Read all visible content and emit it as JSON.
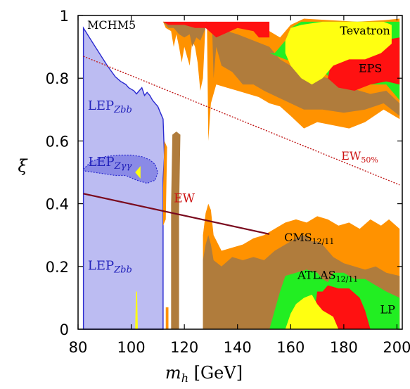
{
  "chart_data": {
    "type": "area",
    "xlabel": "m_h [GeV]",
    "xlabel_main": "m",
    "xlabel_sub": "h",
    "xlabel_unit": " [GeV]",
    "ylabel": "ξ",
    "xlim": [
      80,
      202
    ],
    "ylim": [
      0,
      1
    ],
    "x_ticks": [
      80,
      100,
      120,
      140,
      160,
      180,
      200
    ],
    "y_ticks": [
      0,
      0.2,
      0.4,
      0.6,
      0.8,
      1
    ],
    "y_tick_labels": [
      "0",
      "0.2",
      "0.4",
      "0.6",
      "0.8",
      "1"
    ],
    "grid": false,
    "model_label": "MCHM5",
    "colors": {
      "lep": "#bcbcf2",
      "lep_line": "#2a2ad0",
      "lep_zgg": "#8a8ae6",
      "cms": "#ff9200",
      "atlas": "#b07c3c",
      "lp": "#22ee22",
      "eps": "#ff1111",
      "tevatron": "#ffff11",
      "ew": "#7a0a1e",
      "ew50": "#c01818"
    },
    "regions": [
      {
        "name": "LEP_Zbb",
        "label": "LEP",
        "sub": "Zbb",
        "at": [
          92,
          0.7
        ],
        "polygon": [
          [
            82,
            0.96
          ],
          [
            85,
            0.92
          ],
          [
            88,
            0.88
          ],
          [
            91,
            0.84
          ],
          [
            94,
            0.805
          ],
          [
            96,
            0.79
          ],
          [
            98,
            0.78
          ],
          [
            99,
            0.77
          ],
          [
            100,
            0.765
          ],
          [
            101,
            0.76
          ],
          [
            102,
            0.75
          ],
          [
            103,
            0.76
          ],
          [
            104,
            0.77
          ],
          [
            105,
            0.745
          ],
          [
            106,
            0.755
          ],
          [
            107,
            0.745
          ],
          [
            108,
            0.73
          ],
          [
            109,
            0.72
          ],
          [
            110,
            0.71
          ],
          [
            111,
            0.69
          ],
          [
            112,
            0.67
          ],
          [
            112.5,
            0.55
          ],
          [
            112,
            0.48
          ],
          [
            112,
            0
          ],
          [
            82,
            0
          ]
        ]
      },
      {
        "name": "LEP_Zbb_lower",
        "label": "LEP",
        "sub": "Zbb",
        "at": [
          92,
          0.19
        ]
      },
      {
        "name": "LEP_Zgg",
        "label": "LEP",
        "sub": "Zγγ",
        "at": [
          92,
          0.52
        ],
        "polygon": [
          [
            82,
            0.51
          ],
          [
            85,
            0.535
          ],
          [
            90,
            0.55
          ],
          [
            95,
            0.555
          ],
          [
            100,
            0.555
          ],
          [
            104,
            0.55
          ],
          [
            107,
            0.54
          ],
          [
            109,
            0.525
          ],
          [
            110,
            0.5
          ],
          [
            109,
            0.475
          ],
          [
            106,
            0.465
          ],
          [
            102,
            0.475
          ],
          [
            98,
            0.49
          ],
          [
            94,
            0.49
          ],
          [
            90,
            0.495
          ],
          [
            86,
            0.5
          ],
          [
            82,
            0.505
          ]
        ]
      },
      {
        "name": "EW",
        "label": "EW",
        "at": [
          120,
          0.405
        ],
        "line": [
          [
            82,
            0.432
          ],
          [
            152,
            0.303
          ]
        ]
      },
      {
        "name": "EW_50",
        "label": "EW",
        "sub": "50%",
        "at": [
          186,
          0.54
        ],
        "line": [
          [
            82,
            0.87
          ],
          [
            201,
            0.46
          ]
        ]
      },
      {
        "name": "CMS",
        "label": "CMS",
        "sub": "12/11",
        "at": [
          167,
          0.28
        ],
        "polygon": [
          [
            112,
            0.98
          ],
          [
            124,
            0.97
          ],
          [
            136,
            0.97
          ],
          [
            148,
            0.97
          ],
          [
            152,
            0.95
          ],
          [
            156,
            0.93
          ],
          [
            160,
            0.97
          ],
          [
            165,
            0.99
          ],
          [
            175,
            0.985
          ],
          [
            185,
            0.98
          ],
          [
            195,
            0.985
          ],
          [
            201,
            0.99
          ],
          [
            201,
            0.67
          ],
          [
            195,
            0.7
          ],
          [
            188,
            0.66
          ],
          [
            182,
            0.64
          ],
          [
            176,
            0.65
          ],
          [
            170,
            0.66
          ],
          [
            165,
            0.64
          ],
          [
            160,
            0.68
          ],
          [
            156,
            0.71
          ],
          [
            152,
            0.72
          ],
          [
            148,
            0.74
          ],
          [
            144,
            0.75
          ],
          [
            140,
            0.76
          ],
          [
            136,
            0.77
          ],
          [
            132,
            0.78
          ],
          [
            130,
            0.72
          ],
          [
            129,
            0.6
          ],
          [
            128.5,
            0.98
          ],
          [
            128,
            0.98
          ],
          [
            127,
            0.8
          ],
          [
            126,
            0.76
          ],
          [
            125,
            0.85
          ],
          [
            124,
            0.9
          ],
          [
            123,
            0.92
          ],
          [
            122,
            0.84
          ],
          [
            121,
            0.87
          ],
          [
            120,
            0.9
          ],
          [
            119,
            0.85
          ],
          [
            118,
            0.9
          ],
          [
            117,
            0.94
          ],
          [
            116,
            0.9
          ],
          [
            115,
            0.95
          ],
          [
            113,
            0.96
          ],
          [
            112,
            0.98
          ]
        ]
      },
      {
        "name": "CMS_low",
        "polygon": [
          [
            127,
            0
          ],
          [
            201,
            0
          ],
          [
            201,
            0.32
          ],
          [
            197,
            0.35
          ],
          [
            194,
            0.33
          ],
          [
            190,
            0.35
          ],
          [
            186,
            0.32
          ],
          [
            182,
            0.34
          ],
          [
            178,
            0.33
          ],
          [
            174,
            0.35
          ],
          [
            170,
            0.36
          ],
          [
            166,
            0.34
          ],
          [
            162,
            0.35
          ],
          [
            158,
            0.34
          ],
          [
            154,
            0.32
          ],
          [
            150,
            0.3
          ],
          [
            146,
            0.29
          ],
          [
            142,
            0.27
          ],
          [
            138,
            0.26
          ],
          [
            134,
            0.25
          ],
          [
            131,
            0.3
          ],
          [
            130,
            0.38
          ],
          [
            129,
            0.4
          ],
          [
            128,
            0.37
          ],
          [
            127,
            0.3
          ]
        ]
      },
      {
        "name": "ATLAS",
        "label": "ATLAS",
        "sub": "12/11",
        "at": [
          174,
          0.16
        ],
        "polygon": [
          [
            127,
            0
          ],
          [
            201,
            0
          ],
          [
            201,
            0.17
          ],
          [
            196,
            0.18
          ],
          [
            192,
            0.2
          ],
          [
            188,
            0.19
          ],
          [
            184,
            0.2
          ],
          [
            180,
            0.21
          ],
          [
            176,
            0.23
          ],
          [
            172,
            0.27
          ],
          [
            170,
            0.28
          ],
          [
            168,
            0.28
          ],
          [
            165,
            0.3
          ],
          [
            162,
            0.29
          ],
          [
            158,
            0.27
          ],
          [
            154,
            0.25
          ],
          [
            150,
            0.22
          ],
          [
            146,
            0.23
          ],
          [
            142,
            0.22
          ],
          [
            138,
            0.23
          ],
          [
            134,
            0.2
          ],
          [
            131,
            0.22
          ],
          [
            130,
            0.27
          ],
          [
            129,
            0.3
          ],
          [
            128,
            0.27
          ],
          [
            127,
            0.22
          ]
        ]
      },
      {
        "name": "LP",
        "label": "LP",
        "at": [
          196.5,
          0.05
        ],
        "polygon": [
          [
            152,
            0
          ],
          [
            201,
            0
          ],
          [
            201,
            0.1
          ],
          [
            196,
            0.12
          ],
          [
            192,
            0.14
          ],
          [
            188,
            0.16
          ],
          [
            184,
            0.16
          ],
          [
            180,
            0.18
          ],
          [
            176,
            0.18
          ],
          [
            174,
            0.15
          ],
          [
            172,
            0.16
          ],
          [
            170,
            0.18
          ],
          [
            166,
            0.19
          ],
          [
            162,
            0.18
          ],
          [
            158,
            0.17
          ],
          [
            156,
            0.12
          ],
          [
            154,
            0.06
          ]
        ]
      },
      {
        "name": "EPS",
        "label": "EPS",
        "at": [
          190,
          0.82
        ]
      },
      {
        "name": "Tevatron",
        "label": "Tevatron",
        "at": [
          188,
          0.94
        ]
      }
    ]
  }
}
